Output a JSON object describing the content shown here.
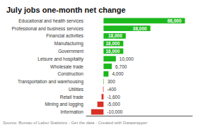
{
  "chart_data": {
    "type": "bar",
    "orientation": "horizontal",
    "title": "July jobs one-month net change",
    "categories": [
      "Educational and health services",
      "Professional and business services",
      "Financial activities",
      "Manufacturing",
      "Government",
      "Leisure and hospitality",
      "Wholesale trade",
      "Construction",
      "Transportation and warehousing",
      "Utilities",
      "Retail trade",
      "Mining and logging",
      "Information"
    ],
    "values": [
      66000,
      38000,
      18000,
      16000,
      16000,
      10000,
      6700,
      4000,
      300,
      -400,
      -1600,
      -5000,
      -10000
    ],
    "value_labels": [
      "66,000",
      "38,000",
      "18,000",
      "16,000",
      "16,000",
      "10,000",
      "6,700",
      "4,000",
      "300",
      "-400",
      "-1,600",
      "-5,000",
      "-10,000"
    ],
    "colors": [
      "#1db81d",
      "#1db81d",
      "#1db81d",
      "#1db81d",
      "#1db81d",
      "#1db81d",
      "#1db81d",
      "#1db81d",
      "#1db81d",
      "#d93025",
      "#d93025",
      "#d93025",
      "#d93025"
    ],
    "xlim": [
      -14000,
      72000
    ],
    "xticks": [],
    "tick_labels": "y",
    "data_labels": true,
    "grid": false,
    "annotations": [
      "Source: Bureau of Labor Statistics - Get the data - Created with Datawrapper"
    ]
  }
}
